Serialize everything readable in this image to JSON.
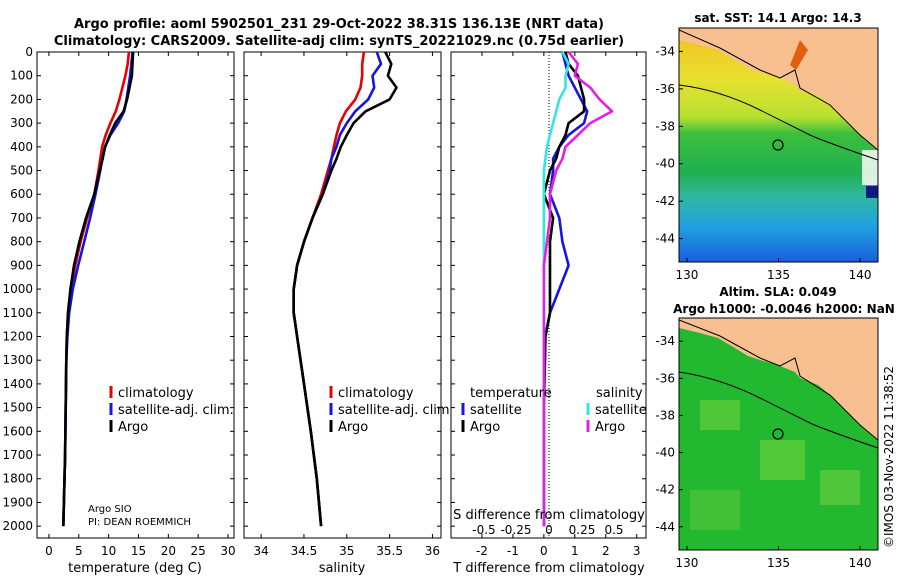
{
  "header": {
    "title_line1": "Argo profile: aoml 5902501_231 29-Oct-2022 38.31S 136.13E (NRT data)",
    "title_line2": "Climatology: CARS2009. Satellite-adj clim: synTS_20221029.nc (0.75d earlier)"
  },
  "colors": {
    "red": "#e60000",
    "blue": "#1414e6",
    "black": "#000000",
    "cyan": "#33e6e6",
    "magenta": "#e61ee6"
  },
  "chart_data": [
    {
      "type": "line",
      "xlabel": "temperature (deg C)",
      "xlim": [
        -2,
        31
      ],
      "xticks": [
        0,
        5,
        10,
        15,
        20,
        25,
        30
      ],
      "ylim": [
        0,
        2050
      ],
      "yticks": [
        0,
        100,
        200,
        300,
        400,
        500,
        600,
        700,
        800,
        900,
        1000,
        1100,
        1200,
        1300,
        1400,
        1500,
        1600,
        1700,
        1800,
        1900,
        2000
      ],
      "depth": [
        0,
        50,
        100,
        150,
        200,
        250,
        300,
        350,
        400,
        450,
        500,
        600,
        700,
        800,
        900,
        1000,
        1100,
        1200,
        1300,
        1500,
        1700,
        2000
      ],
      "series": [
        {
          "name": "climatology",
          "color": "#e60000",
          "values": [
            13.4,
            13.2,
            12.8,
            12.3,
            11.8,
            11.2,
            10.3,
            9.5,
            8.9,
            8.6,
            8.3,
            7.6,
            6.4,
            5.3,
            4.4,
            3.7,
            3.2,
            3.0,
            2.9,
            2.8,
            2.7,
            2.4
          ]
        },
        {
          "name": "satellite-adj. clim.",
          "color": "#1414e6",
          "values": [
            14.0,
            13.8,
            13.6,
            13.3,
            13.0,
            12.6,
            11.6,
            10.3,
            9.4,
            8.9,
            8.6,
            7.8,
            6.9,
            5.9,
            4.9,
            4.0,
            3.4,
            3.1,
            2.9,
            2.8,
            2.7,
            2.4
          ]
        },
        {
          "name": "Argo",
          "color": "#000000",
          "values": [
            14.1,
            14.0,
            13.9,
            13.5,
            13.1,
            12.5,
            11.1,
            10.2,
            9.4,
            9.0,
            8.5,
            7.6,
            6.2,
            5.1,
            4.2,
            3.6,
            3.2,
            3.0,
            2.9,
            2.8,
            2.7,
            2.4
          ]
        }
      ],
      "legend": [
        "climatology",
        "satellite-adj. clim.",
        "Argo"
      ],
      "annotations": [
        "Argo SIO",
        "PI: DEAN ROEMMICH"
      ]
    },
    {
      "type": "line",
      "xlabel": "salinity",
      "xlim": [
        33.8,
        36.1
      ],
      "xticks": [
        34,
        34.5,
        35,
        35.5,
        36
      ],
      "ylim": [
        0,
        2050
      ],
      "depth": [
        0,
        50,
        100,
        150,
        200,
        250,
        300,
        350,
        400,
        450,
        500,
        600,
        700,
        800,
        900,
        1000,
        1100,
        1200,
        1400,
        1600,
        1800,
        2000
      ],
      "series": [
        {
          "name": "climatology",
          "color": "#e60000",
          "values": [
            35.2,
            35.18,
            35.18,
            35.16,
            35.1,
            34.99,
            34.92,
            34.88,
            34.85,
            34.82,
            34.78,
            34.7,
            34.6,
            34.5,
            34.42,
            34.38,
            34.38,
            34.42,
            34.5,
            34.58,
            34.65,
            34.7
          ]
        },
        {
          "name": "satellite-adj. clim.",
          "color": "#1414e6",
          "values": [
            35.35,
            35.4,
            35.3,
            35.32,
            35.25,
            35.1,
            35.0,
            34.92,
            34.88,
            34.82,
            34.8,
            34.72,
            34.6,
            34.5,
            34.42,
            34.38,
            34.38,
            34.42,
            34.5,
            34.58,
            34.65,
            34.7
          ]
        },
        {
          "name": "Argo",
          "color": "#000000",
          "values": [
            35.45,
            35.52,
            35.48,
            35.58,
            35.5,
            35.22,
            35.08,
            35.0,
            34.93,
            34.88,
            34.82,
            34.72,
            34.6,
            34.5,
            34.42,
            34.38,
            34.38,
            34.42,
            34.5,
            34.58,
            34.65,
            34.7
          ]
        }
      ],
      "legend": [
        "climatology",
        "satellite-adj. clim.",
        "Argo"
      ]
    },
    {
      "type": "line",
      "xlabel": "T difference from climatology",
      "xlabel_top": "S difference from climatology",
      "xlim": [
        -3,
        3.3
      ],
      "xticks": [
        -2,
        -1,
        0,
        1,
        2,
        3
      ],
      "xticks_top": [
        "-0.5",
        "-0.25",
        "0",
        "0.25",
        "0.5"
      ],
      "ylim": [
        0,
        2050
      ],
      "depth": [
        0,
        50,
        100,
        150,
        200,
        250,
        300,
        350,
        400,
        450,
        500,
        600,
        700,
        800,
        900,
        1000,
        1100,
        1200,
        1500,
        1800,
        2000
      ],
      "series": [
        {
          "name": "temperature satellite",
          "color": "#1414e6",
          "values": [
            0.6,
            0.7,
            0.8,
            1.0,
            1.2,
            1.4,
            1.3,
            0.8,
            0.5,
            0.3,
            0.3,
            0.2,
            0.5,
            0.6,
            0.8,
            0.5,
            0.2,
            0.05,
            0,
            0,
            0
          ]
        },
        {
          "name": "temperature Argo",
          "color": "#000000",
          "values": [
            0.7,
            0.8,
            1.1,
            1.2,
            1.3,
            1.3,
            0.8,
            0.7,
            0.5,
            0.4,
            0.2,
            0.0,
            0.3,
            0.2,
            0.2,
            0.2,
            0.2,
            0.05,
            0,
            0,
            0
          ]
        },
        {
          "name": "salinity satellite",
          "color": "#33e6e6",
          "values": [
            0.6,
            0.8,
            0.7,
            0.7,
            0.5,
            0.4,
            0.3,
            0.2,
            0.1,
            0.05,
            0.0,
            0,
            0,
            0,
            0,
            0,
            0,
            0,
            0,
            0,
            0
          ]
        },
        {
          "name": "salinity Argo",
          "color": "#e61ee6",
          "values": [
            0.8,
            1.1,
            1.0,
            1.5,
            1.8,
            2.2,
            1.5,
            1.1,
            0.7,
            0.6,
            0.4,
            0.2,
            0.2,
            0.1,
            0.0,
            0.0,
            0.0,
            0,
            0,
            0,
            0
          ]
        }
      ],
      "legend_titles": [
        "temperature",
        "salinity"
      ],
      "legend": [
        "satellite",
        "Argo",
        "satellite",
        "Argo"
      ]
    }
  ],
  "maps": [
    {
      "title": "sat. SST: 14.1 Argo: 14.3",
      "yticks": [
        "-34",
        "-36",
        "-38",
        "-40",
        "-42",
        "-44"
      ],
      "xticks": [
        "130",
        "135",
        "140"
      ]
    },
    {
      "title_line1": "Altim. SLA: 0.049",
      "title_line2": "Argo h1000: -0.0046 h2000: NaN",
      "yticks": [
        "-34",
        "-36",
        "-38",
        "-40",
        "-42",
        "-44"
      ],
      "xticks": [
        "130",
        "135",
        "140"
      ]
    }
  ],
  "stamp": "©IMOS 03-Nov-2022 11:38:52"
}
